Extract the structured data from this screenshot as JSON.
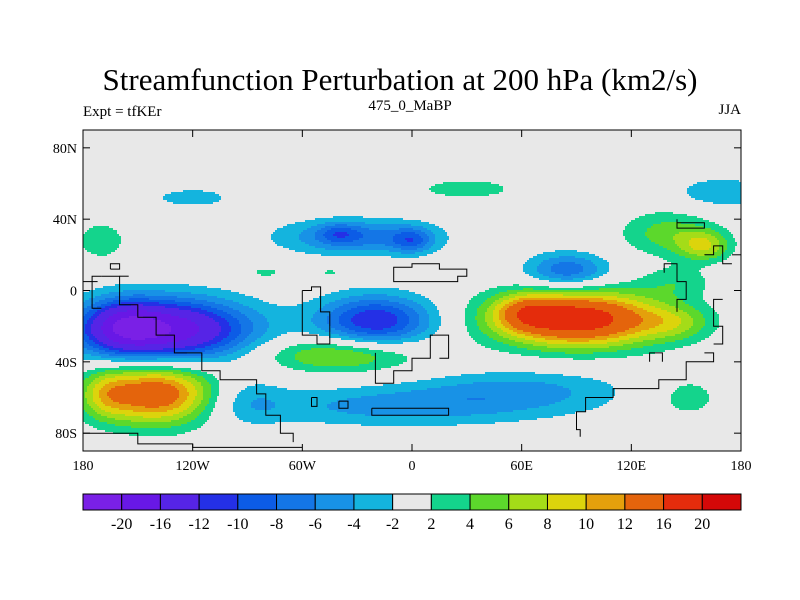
{
  "chart_data": {
    "type": "heatmap",
    "title": "Streamfunction Perturbation at 200 hPa (km2/s)",
    "left_string": "Expt = tfKEr",
    "center_string": "475_0_MaBP",
    "right_string": "JJA",
    "x_ticks": [
      {
        "value": -180,
        "label": "180"
      },
      {
        "value": -120,
        "label": "120W"
      },
      {
        "value": -60,
        "label": "60W"
      },
      {
        "value": 0,
        "label": "0"
      },
      {
        "value": 60,
        "label": "60E"
      },
      {
        "value": 120,
        "label": "120E"
      },
      {
        "value": 180,
        "label": "180"
      }
    ],
    "y_ticks": [
      {
        "value": 80,
        "label": "80N"
      },
      {
        "value": 40,
        "label": "40N"
      },
      {
        "value": 0,
        "label": "0"
      },
      {
        "value": -40,
        "label": "40S"
      },
      {
        "value": -80,
        "label": "80S"
      }
    ],
    "xlim": [
      -180,
      180
    ],
    "ylim": [
      -90,
      90
    ],
    "contour_levels": [
      -20,
      -16,
      -12,
      -10,
      -8,
      -6,
      -4,
      -2,
      2,
      4,
      6,
      8,
      10,
      12,
      16,
      20
    ],
    "colorbar_colors": [
      "#7a20e6",
      "#6818e6",
      "#5624e6",
      "#2430e6",
      "#0c5ce6",
      "#1476e6",
      "#1892e6",
      "#14b4de",
      "#e8e8e8",
      "#14d48c",
      "#5cd82c",
      "#a4dc18",
      "#dcd40c",
      "#e4a00c",
      "#e4640c",
      "#e42c0c",
      "#d40808"
    ],
    "features": [
      {
        "lon": -135,
        "lat": -22,
        "amp": -19,
        "sx": 32,
        "sy": 12
      },
      {
        "lon": -158,
        "lat": -20,
        "amp": -8,
        "sx": 14,
        "sy": 10
      },
      {
        "lon": -20,
        "lat": -17,
        "amp": -12,
        "sx": 22,
        "sy": 10
      },
      {
        "lon": 91,
        "lat": -16,
        "amp": 19,
        "sx": 32,
        "sy": 11
      },
      {
        "lon": 62,
        "lat": -12,
        "amp": 6,
        "sx": 12,
        "sy": 7
      },
      {
        "lon": 145,
        "lat": -18,
        "amp": 4,
        "sx": 14,
        "sy": 7
      },
      {
        "lon": -140,
        "lat": -58,
        "amp": 15,
        "sx": 22,
        "sy": 12
      },
      {
        "lon": -168,
        "lat": -58,
        "amp": 5,
        "sx": 10,
        "sy": 10
      },
      {
        "lon": -5,
        "lat": -65,
        "amp": -5,
        "sx": 60,
        "sy": 8
      },
      {
        "lon": 60,
        "lat": -55,
        "amp": -4,
        "sx": 40,
        "sy": 8
      },
      {
        "lon": -90,
        "lat": -62,
        "amp": -3,
        "sx": 14,
        "sy": 10
      },
      {
        "lon": 150,
        "lat": -60,
        "amp": 3,
        "sx": 16,
        "sy": 10
      },
      {
        "lon": -40,
        "lat": -36,
        "amp": 7,
        "sx": 30,
        "sy": 7
      },
      {
        "lon": -30,
        "lat": 30,
        "amp": -7,
        "sx": 30,
        "sy": 7
      },
      {
        "lon": -40,
        "lat": 32,
        "amp": -4,
        "sx": 8,
        "sy": 4
      },
      {
        "lon": 0,
        "lat": 28,
        "amp": -6,
        "sx": 8,
        "sy": 5
      },
      {
        "lon": 85,
        "lat": 11,
        "amp": -8,
        "sx": 16,
        "sy": 7
      },
      {
        "lon": 170,
        "lat": 55,
        "amp": -4,
        "sx": 18,
        "sy": 6
      },
      {
        "lon": -120,
        "lat": 52,
        "amp": -2.5,
        "sx": 24,
        "sy": 6
      },
      {
        "lon": 30,
        "lat": 57,
        "amp": 2.6,
        "sx": 28,
        "sy": 6
      },
      {
        "lon": 140,
        "lat": 32,
        "amp": 5,
        "sx": 18,
        "sy": 9
      },
      {
        "lon": 160,
        "lat": 25,
        "amp": 7,
        "sx": 10,
        "sy": 6
      },
      {
        "lon": 145,
        "lat": 5,
        "amp": 3,
        "sx": 14,
        "sy": 6
      },
      {
        "lon": -170,
        "lat": 28,
        "amp": 3.5,
        "sx": 10,
        "sy": 8
      },
      {
        "lon": -80,
        "lat": 10,
        "amp": 2.5,
        "sx": 10,
        "sy": 3
      },
      {
        "lon": -45,
        "lat": 10,
        "amp": 2.5,
        "sx": 6,
        "sy": 3
      }
    ],
    "coastlines": [
      [
        [
          -170,
          8
        ],
        [
          -160,
          8
        ],
        [
          -160,
          -8
        ],
        [
          -150,
          -8
        ],
        [
          -150,
          -15
        ],
        [
          -140,
          -15
        ],
        [
          -140,
          -25
        ],
        [
          -130,
          -25
        ],
        [
          -130,
          -35
        ],
        [
          -115,
          -35
        ],
        [
          -115,
          -45
        ],
        [
          -105,
          -45
        ],
        [
          -105,
          -50
        ],
        [
          -85,
          -50
        ],
        [
          -85,
          -58
        ],
        [
          -80,
          -58
        ],
        [
          -80,
          -70
        ],
        [
          -72,
          -70
        ],
        [
          -72,
          -80
        ],
        [
          -65,
          -80
        ],
        [
          -65,
          -85
        ]
      ],
      [
        [
          -170,
          8
        ],
        [
          -175,
          8
        ],
        [
          -175,
          -10
        ],
        [
          -170,
          -10
        ]
      ],
      [
        [
          -160,
          8
        ],
        [
          -155,
          8
        ]
      ],
      [
        [
          -165,
          12
        ],
        [
          -160,
          12
        ],
        [
          -160,
          15
        ],
        [
          -165,
          15
        ],
        [
          -165,
          12
        ]
      ],
      [
        [
          -60,
          0
        ],
        [
          -60,
          -25
        ],
        [
          -52,
          -25
        ],
        [
          -52,
          -30
        ],
        [
          -45,
          -30
        ],
        [
          -45,
          -12
        ],
        [
          -50,
          -12
        ],
        [
          -50,
          2
        ],
        [
          -55,
          2
        ],
        [
          -55,
          0
        ],
        [
          -60,
          0
        ]
      ],
      [
        [
          -20,
          -35
        ],
        [
          -20,
          -52
        ],
        [
          -10,
          -52
        ],
        [
          -10,
          -45
        ],
        [
          0,
          -45
        ],
        [
          0,
          -38
        ],
        [
          10,
          -38
        ],
        [
          10,
          -25
        ],
        [
          20,
          -25
        ],
        [
          20,
          -38
        ],
        [
          15,
          -38
        ]
      ],
      [
        [
          -40,
          -62
        ],
        [
          -35,
          -62
        ],
        [
          -35,
          -66
        ],
        [
          -40,
          -66
        ],
        [
          -40,
          -62
        ]
      ],
      [
        [
          -55,
          -60
        ],
        [
          -52,
          -60
        ],
        [
          -52,
          -65
        ],
        [
          -55,
          -65
        ],
        [
          -55,
          -60
        ]
      ],
      [
        [
          -22,
          -66
        ],
        [
          20,
          -66
        ],
        [
          20,
          -70
        ],
        [
          -22,
          -70
        ],
        [
          -22,
          -66
        ]
      ],
      [
        [
          -10,
          8
        ],
        [
          -10,
          13
        ],
        [
          0,
          13
        ],
        [
          0,
          15
        ],
        [
          15,
          15
        ],
        [
          15,
          12
        ],
        [
          30,
          12
        ],
        [
          30,
          8
        ],
        [
          25,
          8
        ],
        [
          25,
          5
        ],
        [
          -10,
          5
        ],
        [
          -10,
          8
        ]
      ],
      [
        [
          92,
          -82
        ],
        [
          92,
          -78
        ],
        [
          90,
          -78
        ],
        [
          90,
          -68
        ],
        [
          95,
          -68
        ],
        [
          95,
          -60
        ],
        [
          110,
          -60
        ],
        [
          110,
          -55
        ],
        [
          135,
          -55
        ],
        [
          135,
          -50
        ],
        [
          150,
          -50
        ],
        [
          150,
          -40
        ],
        [
          165,
          -40
        ],
        [
          165,
          -35
        ],
        [
          160,
          -35
        ]
      ],
      [
        [
          130,
          -40
        ],
        [
          130,
          -35
        ],
        [
          137,
          -35
        ],
        [
          137,
          -40
        ]
      ],
      [
        [
          145,
          40
        ],
        [
          145,
          35
        ],
        [
          160,
          35
        ],
        [
          160,
          38
        ],
        [
          145,
          38
        ]
      ],
      [
        [
          170,
          -5
        ],
        [
          165,
          -5
        ],
        [
          165,
          -20
        ],
        [
          170,
          -20
        ],
        [
          170,
          -30
        ],
        [
          165,
          -30
        ]
      ],
      [
        [
          138,
          10
        ],
        [
          138,
          15
        ],
        [
          145,
          15
        ],
        [
          145,
          5
        ],
        [
          150,
          5
        ],
        [
          150,
          -5
        ],
        [
          145,
          -5
        ],
        [
          145,
          -12
        ]
      ],
      [
        [
          160,
          20
        ],
        [
          165,
          20
        ],
        [
          165,
          25
        ],
        [
          170,
          25
        ],
        [
          170,
          15
        ],
        [
          175,
          15
        ]
      ],
      [
        [
          175,
          20
        ],
        [
          180,
          20
        ]
      ],
      [
        [
          -180,
          -80
        ],
        [
          -150,
          -80
        ],
        [
          -150,
          -86
        ],
        [
          -120,
          -86
        ],
        [
          -120,
          -88
        ],
        [
          -60,
          -88
        ]
      ],
      [
        [
          -180,
          5
        ],
        [
          -172,
          5
        ]
      ]
    ]
  }
}
